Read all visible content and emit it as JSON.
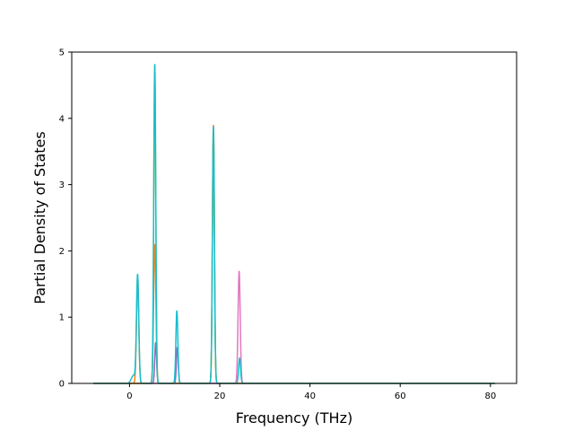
{
  "chart_data": {
    "type": "line",
    "title": "",
    "xlabel": "Frequency (THz)",
    "ylabel": "Partial Density of States",
    "xlim": [
      -12.8,
      85.8
    ],
    "ylim": [
      0,
      5.0
    ],
    "xticks": [
      0,
      20,
      40,
      60,
      80
    ],
    "xtick_labels": [
      "0",
      "20",
      "40",
      "60",
      "80"
    ],
    "yticks": [
      0,
      1,
      2,
      3,
      4,
      5
    ],
    "ytick_labels": [
      "0",
      "1",
      "2",
      "3",
      "4",
      "5"
    ],
    "grid": false,
    "legend": "none",
    "x_range": [
      -8,
      81
    ],
    "series": [
      {
        "color": "#ff7f0e",
        "peaks": [
          {
            "center": 1.8,
            "height": 1.6,
            "width": 0.25
          },
          {
            "center": 5.6,
            "height": 2.1,
            "width": 0.25
          },
          {
            "center": 18.6,
            "height": 3.9,
            "width": 0.22
          }
        ]
      },
      {
        "color": "#9467bd",
        "peaks": [
          {
            "center": 5.8,
            "height": 0.62,
            "width": 0.2
          },
          {
            "center": 10.6,
            "height": 0.55,
            "width": 0.2
          }
        ]
      },
      {
        "color": "#e377c2",
        "peaks": [
          {
            "center": 24.3,
            "height": 1.7,
            "width": 0.24
          }
        ]
      },
      {
        "color": "#bcbd22",
        "peaks": [
          {
            "center": 5.6,
            "height": 4.8,
            "width": 0.22
          },
          {
            "center": 18.6,
            "height": 3.85,
            "width": 0.22
          }
        ]
      },
      {
        "color": "#17becf",
        "peaks": [
          {
            "center": 0.9,
            "height": 0.12,
            "width": 0.5
          },
          {
            "center": 1.8,
            "height": 1.63,
            "width": 0.25
          },
          {
            "center": 5.6,
            "height": 4.82,
            "width": 0.22
          },
          {
            "center": 10.5,
            "height": 1.1,
            "width": 0.22
          },
          {
            "center": 18.6,
            "height": 3.88,
            "width": 0.22
          },
          {
            "center": 24.4,
            "height": 0.38,
            "width": 0.22
          }
        ]
      }
    ]
  }
}
